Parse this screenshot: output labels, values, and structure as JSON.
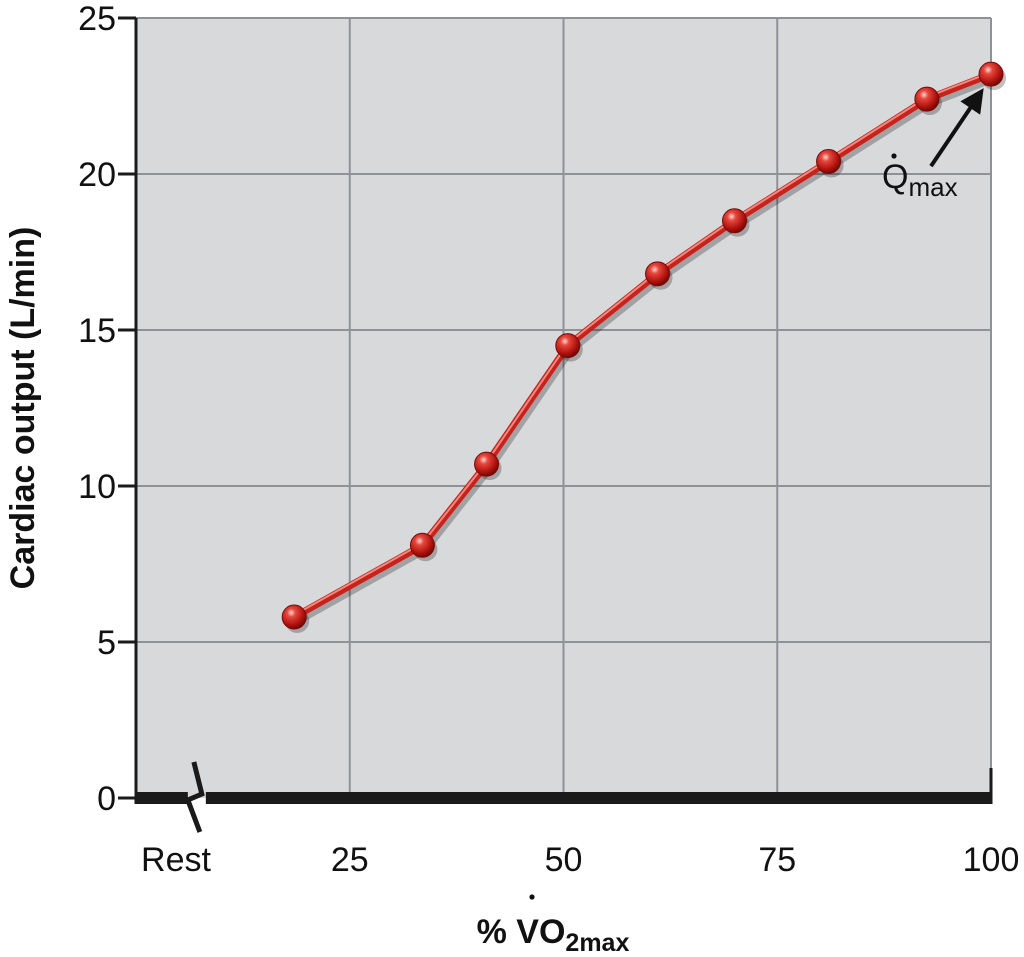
{
  "chart_data": {
    "type": "line",
    "xlabel": {
      "prefix": "% V",
      "main": "O",
      "sub": "2max"
    },
    "ylabel": "Cardiac output (L/min)",
    "xlim": [
      0,
      100
    ],
    "ylim": [
      0,
      25
    ],
    "x_ticks": [
      {
        "value": 0,
        "label": "Rest"
      },
      {
        "value": 25,
        "label": "25"
      },
      {
        "value": 50,
        "label": "50"
      },
      {
        "value": 75,
        "label": "75"
      },
      {
        "value": 100,
        "label": "100"
      }
    ],
    "y_ticks": [
      0,
      5,
      10,
      15,
      20,
      25
    ],
    "grid": true,
    "axis_break_near_x": 7,
    "series": [
      {
        "color": "#c8221c",
        "x": [
          18.5,
          33.5,
          41,
          50.5,
          61,
          70,
          81,
          92.5,
          100
        ],
        "y": [
          5.8,
          8.1,
          10.7,
          14.5,
          16.8,
          18.5,
          20.4,
          22.4,
          23.2
        ]
      }
    ],
    "annotations": [
      {
        "main": "Q",
        "sub": "max",
        "points_to_x": 100,
        "points_to_y": 23.2
      }
    ]
  },
  "colors": {
    "plot_bg": "#d8d9db",
    "grid": "#8e9196",
    "axis": "#1a1a1a",
    "line": "#c8221c"
  }
}
